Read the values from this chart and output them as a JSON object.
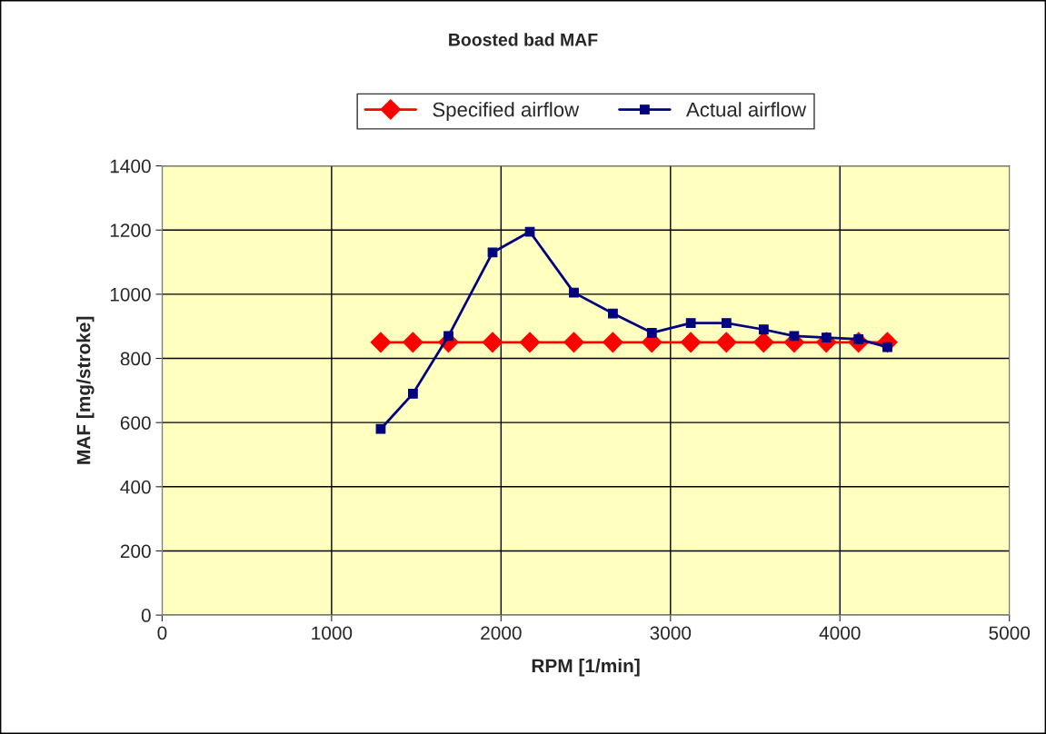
{
  "chart_data": {
    "type": "line",
    "title": "Boosted bad MAF",
    "xlabel": "RPM [1/min]",
    "ylabel": "MAF [mg/stroke]",
    "x": [
      1290,
      1480,
      1690,
      1950,
      2170,
      2430,
      2660,
      2890,
      3120,
      3330,
      3550,
      3730,
      3920,
      4110,
      4280
    ],
    "series": [
      {
        "name": "Specified airflow",
        "color": "#ff0000",
        "marker": "diamond",
        "values": [
          850,
          850,
          850,
          850,
          850,
          850,
          850,
          850,
          850,
          850,
          850,
          850,
          850,
          850,
          850
        ]
      },
      {
        "name": "Actual airflow",
        "color": "#000080",
        "marker": "square",
        "values": [
          580,
          690,
          870,
          1130,
          1195,
          1005,
          940,
          880,
          910,
          910,
          890,
          870,
          865,
          860,
          835
        ]
      }
    ],
    "xlim": [
      0,
      5000
    ],
    "xticks": [
      0,
      1000,
      2000,
      3000,
      4000,
      5000
    ],
    "ylim": [
      0,
      1400
    ],
    "yticks": [
      0,
      200,
      400,
      600,
      800,
      1000,
      1200,
      1400
    ],
    "grid": true,
    "legend": "top",
    "line_style": "solid"
  }
}
